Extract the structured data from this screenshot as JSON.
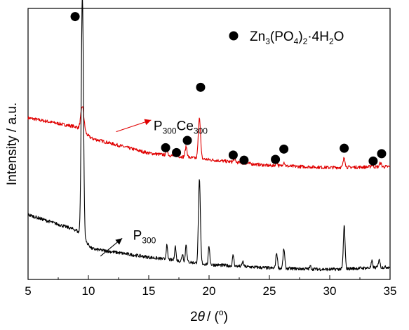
{
  "chart_data": {
    "type": "line",
    "xlabel": {
      "theta": "θ",
      "rest": "/ (",
      "unit": "o",
      "close": ")",
      "prefix": "2"
    },
    "ylabel": "Intensity / a.u.",
    "xlim": [
      5,
      35
    ],
    "xticks": [
      "5",
      "10",
      "15",
      "20",
      "25",
      "30",
      "35"
    ],
    "ylim": [
      0,
      100
    ],
    "y_ticks_labeled": false,
    "grid": false,
    "legend": {
      "placement": "top-right",
      "marker": "filled-circle",
      "text": "Zn3(PO4)2·4H2O"
    },
    "series": [
      {
        "name": "P300Ce300",
        "color": "#e00000",
        "baseline": [
          [
            5,
            59.6
          ],
          [
            9.0,
            56.3
          ],
          [
            10.3,
            52.0
          ],
          [
            15,
            46.6
          ],
          [
            20,
            44.2
          ],
          [
            25,
            42.0
          ],
          [
            30,
            41.3
          ],
          [
            35,
            41.6
          ]
        ],
        "noise": 0.6,
        "peaks": [
          {
            "x": 9.5,
            "h": 9.2,
            "w": 0.13
          },
          {
            "x": 16.5,
            "h": 2.2,
            "w": 0.07
          },
          {
            "x": 17.3,
            "h": 1.6,
            "w": 0.07
          },
          {
            "x": 18.1,
            "h": 3.8,
            "w": 0.08
          },
          {
            "x": 19.2,
            "h": 15.4,
            "w": 0.09
          },
          {
            "x": 22.1,
            "h": 1.2,
            "w": 0.08
          },
          {
            "x": 25.6,
            "h": 1.4,
            "w": 0.08
          },
          {
            "x": 26.2,
            "h": 1.5,
            "w": 0.08
          },
          {
            "x": 31.2,
            "h": 3.6,
            "w": 0.08
          },
          {
            "x": 33.5,
            "h": 0.8,
            "w": 0.08
          },
          {
            "x": 34.2,
            "h": 1.4,
            "w": 0.08
          }
        ]
      },
      {
        "name": "P300",
        "color": "#000000",
        "baseline": [
          [
            5,
            23.9
          ],
          [
            9.0,
            18.2
          ],
          [
            10.3,
            11.3
          ],
          [
            15,
            8.2
          ],
          [
            20,
            5.5
          ],
          [
            25,
            4.2
          ],
          [
            30,
            3.7
          ],
          [
            35,
            4.6
          ]
        ],
        "noise": 0.6,
        "peaks": [
          {
            "x": 9.5,
            "h": 89.5,
            "w": 0.09
          },
          {
            "x": 16.5,
            "h": 5.1,
            "w": 0.06
          },
          {
            "x": 17.2,
            "h": 5.3,
            "w": 0.06
          },
          {
            "x": 17.8,
            "h": 2.8,
            "w": 0.06
          },
          {
            "x": 18.1,
            "h": 6.6,
            "w": 0.06
          },
          {
            "x": 19.2,
            "h": 30.6,
            "w": 0.08
          },
          {
            "x": 20.0,
            "h": 6.8,
            "w": 0.06
          },
          {
            "x": 22.0,
            "h": 4.0,
            "w": 0.06
          },
          {
            "x": 22.8,
            "h": 1.8,
            "w": 0.06
          },
          {
            "x": 25.6,
            "h": 5.6,
            "w": 0.07
          },
          {
            "x": 26.2,
            "h": 7.2,
            "w": 0.07
          },
          {
            "x": 28.4,
            "h": 1.0,
            "w": 0.06
          },
          {
            "x": 31.2,
            "h": 15.9,
            "w": 0.07
          },
          {
            "x": 33.5,
            "h": 2.4,
            "w": 0.06
          },
          {
            "x": 34.1,
            "h": 3.3,
            "w": 0.06
          }
        ]
      }
    ],
    "markers": [
      {
        "x": 8.9,
        "y": 97.0
      },
      {
        "x": 19.3,
        "y": 70.9
      },
      {
        "x": 16.4,
        "y": 48.6
      },
      {
        "x": 17.3,
        "y": 46.8
      },
      {
        "x": 18.2,
        "y": 51.3
      },
      {
        "x": 22.0,
        "y": 45.9
      },
      {
        "x": 22.9,
        "y": 44.0
      },
      {
        "x": 25.5,
        "y": 44.3
      },
      {
        "x": 26.2,
        "y": 48.1
      },
      {
        "x": 31.2,
        "y": 48.4
      },
      {
        "x": 33.6,
        "y": 43.7
      },
      {
        "x": 34.3,
        "y": 46.4
      }
    ],
    "annotations": [
      {
        "main": "P",
        "sub1": "300",
        "mid": "Ce",
        "sub2": "300",
        "color": "#e00000",
        "arrow_from": [
          12.3,
          54.5
        ],
        "arrow_to": [
          15.2,
          58.8
        ],
        "text_at": [
          15.4,
          55.0
        ]
      },
      {
        "main": "P",
        "sub1": "300",
        "mid": "",
        "sub2": "",
        "color": "#000000",
        "arrow_from": [
          11.0,
          8.6
        ],
        "arrow_to": [
          12.8,
          15.2
        ],
        "text_at": [
          13.7,
          14.6
        ]
      }
    ]
  },
  "legend_text": {
    "prefix": "Zn",
    "s1": "3",
    "mid1": "(PO",
    "s2": "4",
    "mid2": ")",
    "s3": "2",
    "mid3": "·4H",
    "s4": "2",
    "suffix": "O"
  }
}
